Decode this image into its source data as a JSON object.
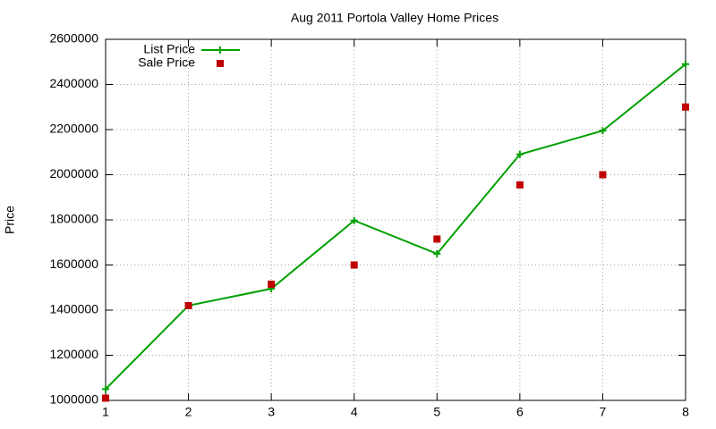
{
  "chart_data": {
    "type": "line",
    "title": "Aug 2011 Portola Valley Home Prices",
    "y_label": "Price",
    "x": [
      1,
      2,
      3,
      4,
      5,
      6,
      7,
      8
    ],
    "xlim": [
      1,
      8
    ],
    "xticks": [
      1,
      2,
      3,
      4,
      5,
      6,
      7,
      8
    ],
    "ylim": [
      1000000,
      2600000
    ],
    "yticks": [
      1000000,
      1200000,
      1400000,
      1600000,
      1800000,
      2000000,
      2200000,
      2400000,
      2600000
    ],
    "grid": true,
    "legend": "top-left",
    "series": [
      {
        "name": "List Price",
        "color": "#00a000",
        "style": "linespoints",
        "values": [
          1050000,
          1420000,
          1495000,
          1797000,
          1650000,
          2090000,
          2195000,
          2490000
        ]
      },
      {
        "name": "Sale Price",
        "color": "#c00000",
        "style": "points",
        "values": [
          1010000,
          1420000,
          1515000,
          1600000,
          1715000,
          1955000,
          2000000,
          2300000
        ]
      }
    ]
  }
}
